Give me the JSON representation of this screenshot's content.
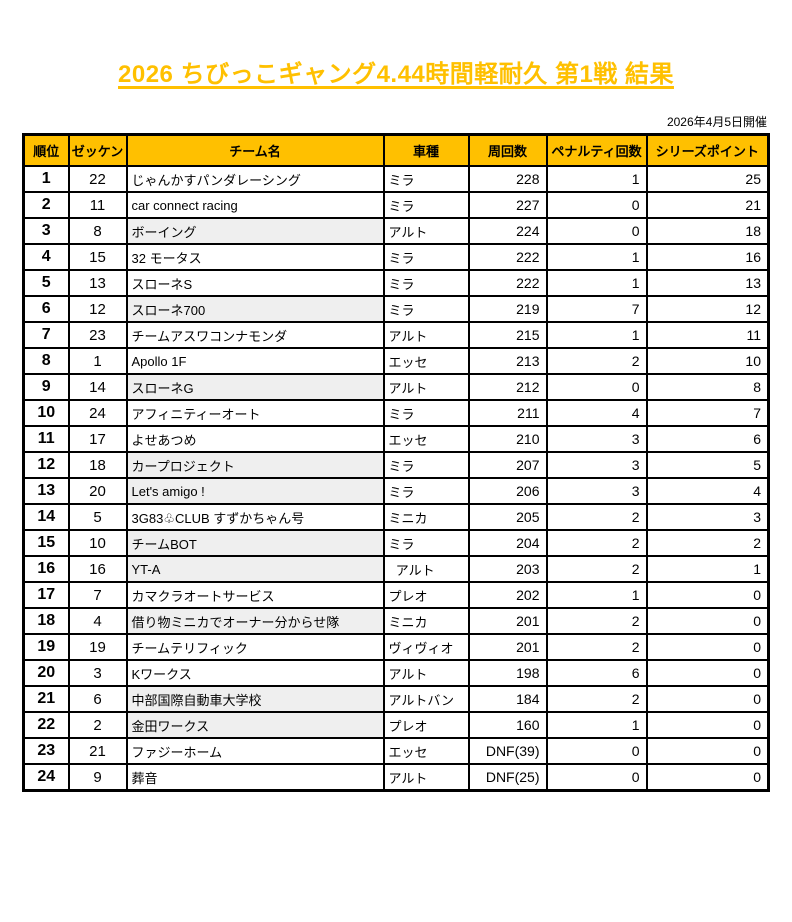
{
  "page": {
    "title": "2026 ちびっこギャング4.44時間軽耐久 第1戦 結果",
    "date_note": "2026年4月5日開催"
  },
  "colors": {
    "accent_gold": "#FFC000",
    "shaded_cell": "#EFEFEF",
    "border": "#000000",
    "text": "#000000"
  },
  "table": {
    "headers": [
      "順位",
      "ゼッケン",
      "チーム名",
      "車種",
      "周回数",
      "ペナルティ回数",
      "シリーズポイント"
    ],
    "rows": [
      {
        "rank": "1",
        "no": "22",
        "team": "じゃんかすパンダレーシング",
        "car": "ミラ",
        "laps": "228",
        "penalties": "1",
        "points": "25",
        "shaded": false
      },
      {
        "rank": "2",
        "no": "11",
        "team": "car connect racing",
        "car": "ミラ",
        "laps": "227",
        "penalties": "0",
        "points": "21",
        "shaded": false
      },
      {
        "rank": "3",
        "no": "8",
        "team": "ボーイング",
        "car": "アルト",
        "laps": "224",
        "penalties": "0",
        "points": "18",
        "shaded": true
      },
      {
        "rank": "4",
        "no": "15",
        "team": "32 モータス",
        "car": "ミラ",
        "laps": "222",
        "penalties": "1",
        "points": "16",
        "shaded": false
      },
      {
        "rank": "5",
        "no": "13",
        "team": "スローネS",
        "car": "ミラ",
        "laps": "222",
        "penalties": "1",
        "points": "13",
        "shaded": false
      },
      {
        "rank": "6",
        "no": "12",
        "team": "スローネ700",
        "car": "ミラ",
        "laps": "219",
        "penalties": "7",
        "points": "12",
        "shaded": true
      },
      {
        "rank": "7",
        "no": "23",
        "team": "チームアスワコンナモンダ",
        "car": "アルト",
        "laps": "215",
        "penalties": "1",
        "points": "11",
        "shaded": false
      },
      {
        "rank": "8",
        "no": "1",
        "team": "Apollo 1F",
        "car": "エッセ",
        "laps": "213",
        "penalties": "2",
        "points": "10",
        "shaded": false
      },
      {
        "rank": "9",
        "no": "14",
        "team": "スローネG",
        "car": "アルト",
        "laps": "212",
        "penalties": "0",
        "points": "8",
        "shaded": true
      },
      {
        "rank": "10",
        "no": "24",
        "team": "アフィニティーオート",
        "car": "ミラ",
        "laps": "211",
        "penalties": "4",
        "points": "7",
        "shaded": false
      },
      {
        "rank": "11",
        "no": "17",
        "team": "よせあつめ",
        "car": "エッセ",
        "laps": "210",
        "penalties": "3",
        "points": "6",
        "shaded": false
      },
      {
        "rank": "12",
        "no": "18",
        "team": "カープロジェクト",
        "car": "ミラ",
        "laps": "207",
        "penalties": "3",
        "points": "5",
        "shaded": true
      },
      {
        "rank": "13",
        "no": "20",
        "team": "Let's amigo !",
        "car": "ミラ",
        "laps": "206",
        "penalties": "3",
        "points": "4",
        "shaded": true
      },
      {
        "rank": "14",
        "no": "5",
        "team": "3G83♧CLUB すずかちゃん号",
        "car": "ミニカ",
        "laps": "205",
        "penalties": "2",
        "points": "3",
        "shaded": false
      },
      {
        "rank": "15",
        "no": "10",
        "team": "チームBOT",
        "car": "ミラ",
        "laps": "204",
        "penalties": "2",
        "points": "2",
        "shaded": true
      },
      {
        "rank": "16",
        "no": "16",
        "team": "YT-A",
        "car": "  アルト",
        "laps": "203",
        "penalties": "2",
        "points": "1",
        "shaded": true
      },
      {
        "rank": "17",
        "no": "7",
        "team": "カマクラオートサービス",
        "car": "プレオ",
        "laps": "202",
        "penalties": "1",
        "points": "0",
        "shaded": false
      },
      {
        "rank": "18",
        "no": "4",
        "team": "借り物ミニカでオーナー分からせ隊",
        "car": "ミニカ",
        "laps": "201",
        "penalties": "2",
        "points": "0",
        "shaded": true
      },
      {
        "rank": "19",
        "no": "19",
        "team": "チームテリフィック",
        "car": "ヴィヴィオ",
        "laps": "201",
        "penalties": "2",
        "points": "0",
        "shaded": false
      },
      {
        "rank": "20",
        "no": "3",
        "team": "Kワークス",
        "car": "アルト",
        "laps": "198",
        "penalties": "6",
        "points": "0",
        "shaded": false
      },
      {
        "rank": "21",
        "no": "6",
        "team": "中部国際自動車大学校",
        "car": "アルトバン",
        "laps": "184",
        "penalties": "2",
        "points": "0",
        "shaded": true
      },
      {
        "rank": "22",
        "no": "2",
        "team": "金田ワークス",
        "car": "プレオ",
        "laps": "160",
        "penalties": "1",
        "points": "0",
        "shaded": true
      },
      {
        "rank": "23",
        "no": "21",
        "team": "ファジーホーム",
        "car": "エッセ",
        "laps": "DNF(39)",
        "penalties": "0",
        "points": "0",
        "shaded": false
      },
      {
        "rank": "24",
        "no": "9",
        "team": "葬音",
        "car": "アルト",
        "laps": "DNF(25)",
        "penalties": "0",
        "points": "0",
        "shaded": false
      }
    ]
  }
}
